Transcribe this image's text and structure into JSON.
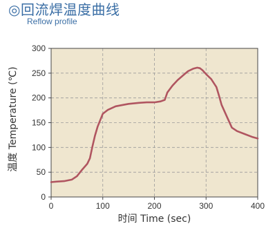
{
  "header": {
    "title": "◎回流焊温度曲线",
    "subtitle": "Reflow profile"
  },
  "chart_data": {
    "type": "line",
    "title": "",
    "xlabel": "时间  Time (sec)",
    "ylabel": "温度  Temperature (℃)",
    "xlim": [
      0,
      400
    ],
    "ylim": [
      0,
      300
    ],
    "xticks": [
      0,
      100,
      200,
      300,
      400
    ],
    "yticks": [
      0,
      50,
      100,
      150,
      200,
      250,
      300
    ],
    "grid": true,
    "plot_background": "#efe6cf",
    "line_color": "#b05560",
    "series": [
      {
        "x": [
          0,
          10,
          25,
          40,
          50,
          60,
          70,
          75,
          80,
          85,
          90,
          100,
          110,
          125,
          140,
          150,
          170,
          185,
          200,
          212,
          220,
          225,
          235,
          245,
          255,
          265,
          275,
          283,
          288,
          293,
          300,
          310,
          320,
          325,
          330,
          340,
          350,
          360,
          375,
          390,
          400
        ],
        "y": [
          30,
          31,
          32,
          35,
          42,
          55,
          67,
          78,
          102,
          124,
          142,
          168,
          176,
          183,
          186,
          188,
          190,
          191,
          191,
          193,
          196,
          211,
          225,
          236,
          245,
          254,
          259,
          261,
          260,
          256,
          248,
          238,
          222,
          205,
          186,
          163,
          140,
          133,
          127,
          121,
          118
        ]
      }
    ]
  }
}
